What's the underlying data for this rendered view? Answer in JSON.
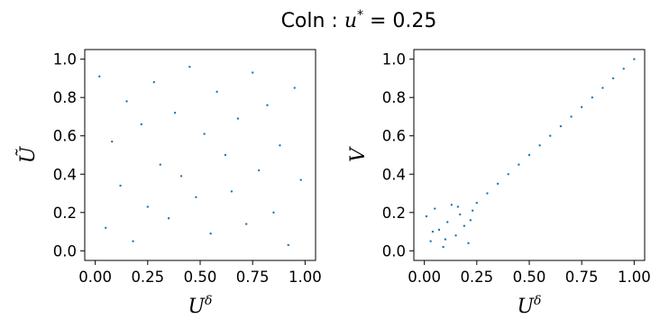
{
  "figure": {
    "title_prefix": "Coln : ",
    "title_var": "u",
    "title_sup": "*",
    "title_suffix": " = 0.25"
  },
  "colors": {
    "points": "#1f77b4",
    "axes": "#000000"
  },
  "chart_data": [
    {
      "type": "scatter",
      "title": "",
      "xlabel": "U",
      "xlabel_sup": "δ",
      "ylabel": "Ũ",
      "xlim": [
        -0.05,
        1.05
      ],
      "ylim": [
        -0.05,
        1.05
      ],
      "xticks": [
        "0.00",
        "0.25",
        "0.50",
        "0.75",
        "1.00"
      ],
      "yticks": [
        "0.0",
        "0.2",
        "0.4",
        "0.6",
        "0.8",
        "1.0"
      ],
      "grid": false,
      "series": [
        {
          "x": [
            0.02,
            0.05,
            0.08,
            0.12,
            0.15,
            0.18,
            0.22,
            0.25,
            0.28,
            0.31,
            0.35,
            0.38,
            0.41,
            0.45,
            0.48,
            0.52,
            0.55,
            0.58,
            0.62,
            0.65,
            0.68,
            0.72,
            0.75,
            0.78,
            0.82,
            0.85,
            0.88,
            0.92,
            0.95,
            0.98
          ],
          "y": [
            0.91,
            0.12,
            0.57,
            0.34,
            0.78,
            0.05,
            0.66,
            0.23,
            0.88,
            0.45,
            0.17,
            0.72,
            0.39,
            0.96,
            0.28,
            0.61,
            0.09,
            0.83,
            0.5,
            0.31,
            0.69,
            0.14,
            0.93,
            0.42,
            0.76,
            0.2,
            0.55,
            0.03,
            0.85,
            0.37
          ]
        }
      ]
    },
    {
      "type": "scatter",
      "title": "",
      "xlabel": "U",
      "xlabel_sup": "δ",
      "ylabel": "V",
      "xlim": [
        -0.05,
        1.05
      ],
      "ylim": [
        -0.05,
        1.05
      ],
      "xticks": [
        "0.00",
        "0.25",
        "0.50",
        "0.75",
        "1.00"
      ],
      "yticks": [
        "0.0",
        "0.2",
        "0.4",
        "0.6",
        "0.8",
        "1.0"
      ],
      "grid": false,
      "series": [
        {
          "x": [
            0.01,
            0.03,
            0.05,
            0.07,
            0.09,
            0.11,
            0.13,
            0.15,
            0.17,
            0.19,
            0.21,
            0.23,
            0.04,
            0.1,
            0.16,
            0.22,
            0.25,
            0.3,
            0.35,
            0.4,
            0.45,
            0.5,
            0.55,
            0.6,
            0.65,
            0.7,
            0.75,
            0.8,
            0.85,
            0.9,
            0.95,
            1.0
          ],
          "y": [
            0.18,
            0.05,
            0.22,
            0.11,
            0.02,
            0.15,
            0.24,
            0.08,
            0.19,
            0.13,
            0.04,
            0.21,
            0.1,
            0.06,
            0.23,
            0.16,
            0.25,
            0.3,
            0.35,
            0.4,
            0.45,
            0.5,
            0.55,
            0.6,
            0.65,
            0.7,
            0.75,
            0.8,
            0.85,
            0.9,
            0.95,
            1.0
          ]
        }
      ]
    }
  ]
}
